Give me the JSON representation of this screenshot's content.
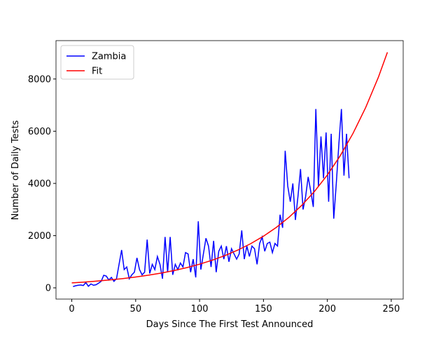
{
  "chart_data": {
    "type": "line",
    "xlabel": "Days Since The First Test Announced",
    "ylabel": "Number of Daily Tests",
    "xlim": [
      -12.35,
      259.35
    ],
    "ylim": [
      -430,
      9470
    ],
    "xticks": [
      0,
      50,
      100,
      150,
      200,
      250
    ],
    "yticks": [
      0,
      2000,
      4000,
      6000,
      8000
    ],
    "legend": "upper left",
    "series": [
      {
        "name": "Zambia",
        "color": "#0000ff",
        "x": [
          1,
          3,
          5,
          7,
          9,
          11,
          13,
          15,
          17,
          19,
          21,
          23,
          25,
          27,
          29,
          31,
          33,
          35,
          37,
          39,
          41,
          43,
          45,
          47,
          49,
          51,
          53,
          55,
          57,
          59,
          61,
          63,
          65,
          67,
          69,
          71,
          73,
          75,
          77,
          79,
          81,
          83,
          85,
          87,
          89,
          91,
          93,
          95,
          97,
          99,
          101,
          103,
          105,
          107,
          109,
          111,
          113,
          115,
          117,
          119,
          121,
          123,
          125,
          127,
          129,
          131,
          133,
          135,
          137,
          139,
          141,
          143,
          145,
          147,
          149,
          151,
          153,
          155,
          157,
          159,
          161,
          163,
          165,
          167,
          169,
          171,
          173,
          175,
          177,
          179,
          181,
          183,
          185,
          187,
          189,
          191,
          193,
          195,
          197,
          199,
          201,
          203,
          205,
          207,
          209,
          211,
          213,
          215,
          217
        ],
        "values": [
          50,
          80,
          100,
          110,
          90,
          200,
          60,
          150,
          100,
          120,
          180,
          250,
          480,
          450,
          300,
          400,
          250,
          350,
          900,
          1450,
          700,
          800,
          350,
          500,
          600,
          1150,
          700,
          500,
          600,
          1850,
          550,
          900,
          700,
          1200,
          900,
          350,
          1950,
          600,
          1950,
          500,
          900,
          700,
          950,
          800,
          1350,
          1300,
          600,
          1100,
          400,
          2550,
          700,
          1300,
          1900,
          1600,
          800,
          1800,
          600,
          1400,
          1600,
          1100,
          1600,
          1000,
          1500,
          1300,
          1100,
          1300,
          2200,
          1100,
          1600,
          1200,
          1600,
          1500,
          900,
          1700,
          1950,
          1400,
          1700,
          1750,
          1350,
          1700,
          1600,
          2800,
          2300,
          5250,
          3900,
          3300,
          4000,
          2600,
          3500,
          4550,
          3000,
          3500,
          4250,
          3700,
          3100,
          6850,
          3900,
          5800,
          4200,
          5950,
          3300,
          5900,
          2650,
          4000,
          5500,
          6850,
          4300,
          5900,
          4200
        ]
      },
      {
        "name": "Fit",
        "color": "#ff0000",
        "x": [
          0,
          10,
          20,
          30,
          40,
          50,
          60,
          70,
          80,
          90,
          100,
          110,
          120,
          130,
          140,
          150,
          160,
          170,
          180,
          190,
          200,
          210,
          220,
          230,
          240,
          247
        ],
        "values": [
          190,
          222,
          260,
          304,
          355,
          415,
          485,
          567,
          663,
          775,
          906,
          1060,
          1239,
          1448,
          1693,
          1979,
          2314,
          2705,
          3163,
          3698,
          4324,
          5055,
          5910,
          6909,
          8077,
          9025
        ]
      }
    ]
  }
}
